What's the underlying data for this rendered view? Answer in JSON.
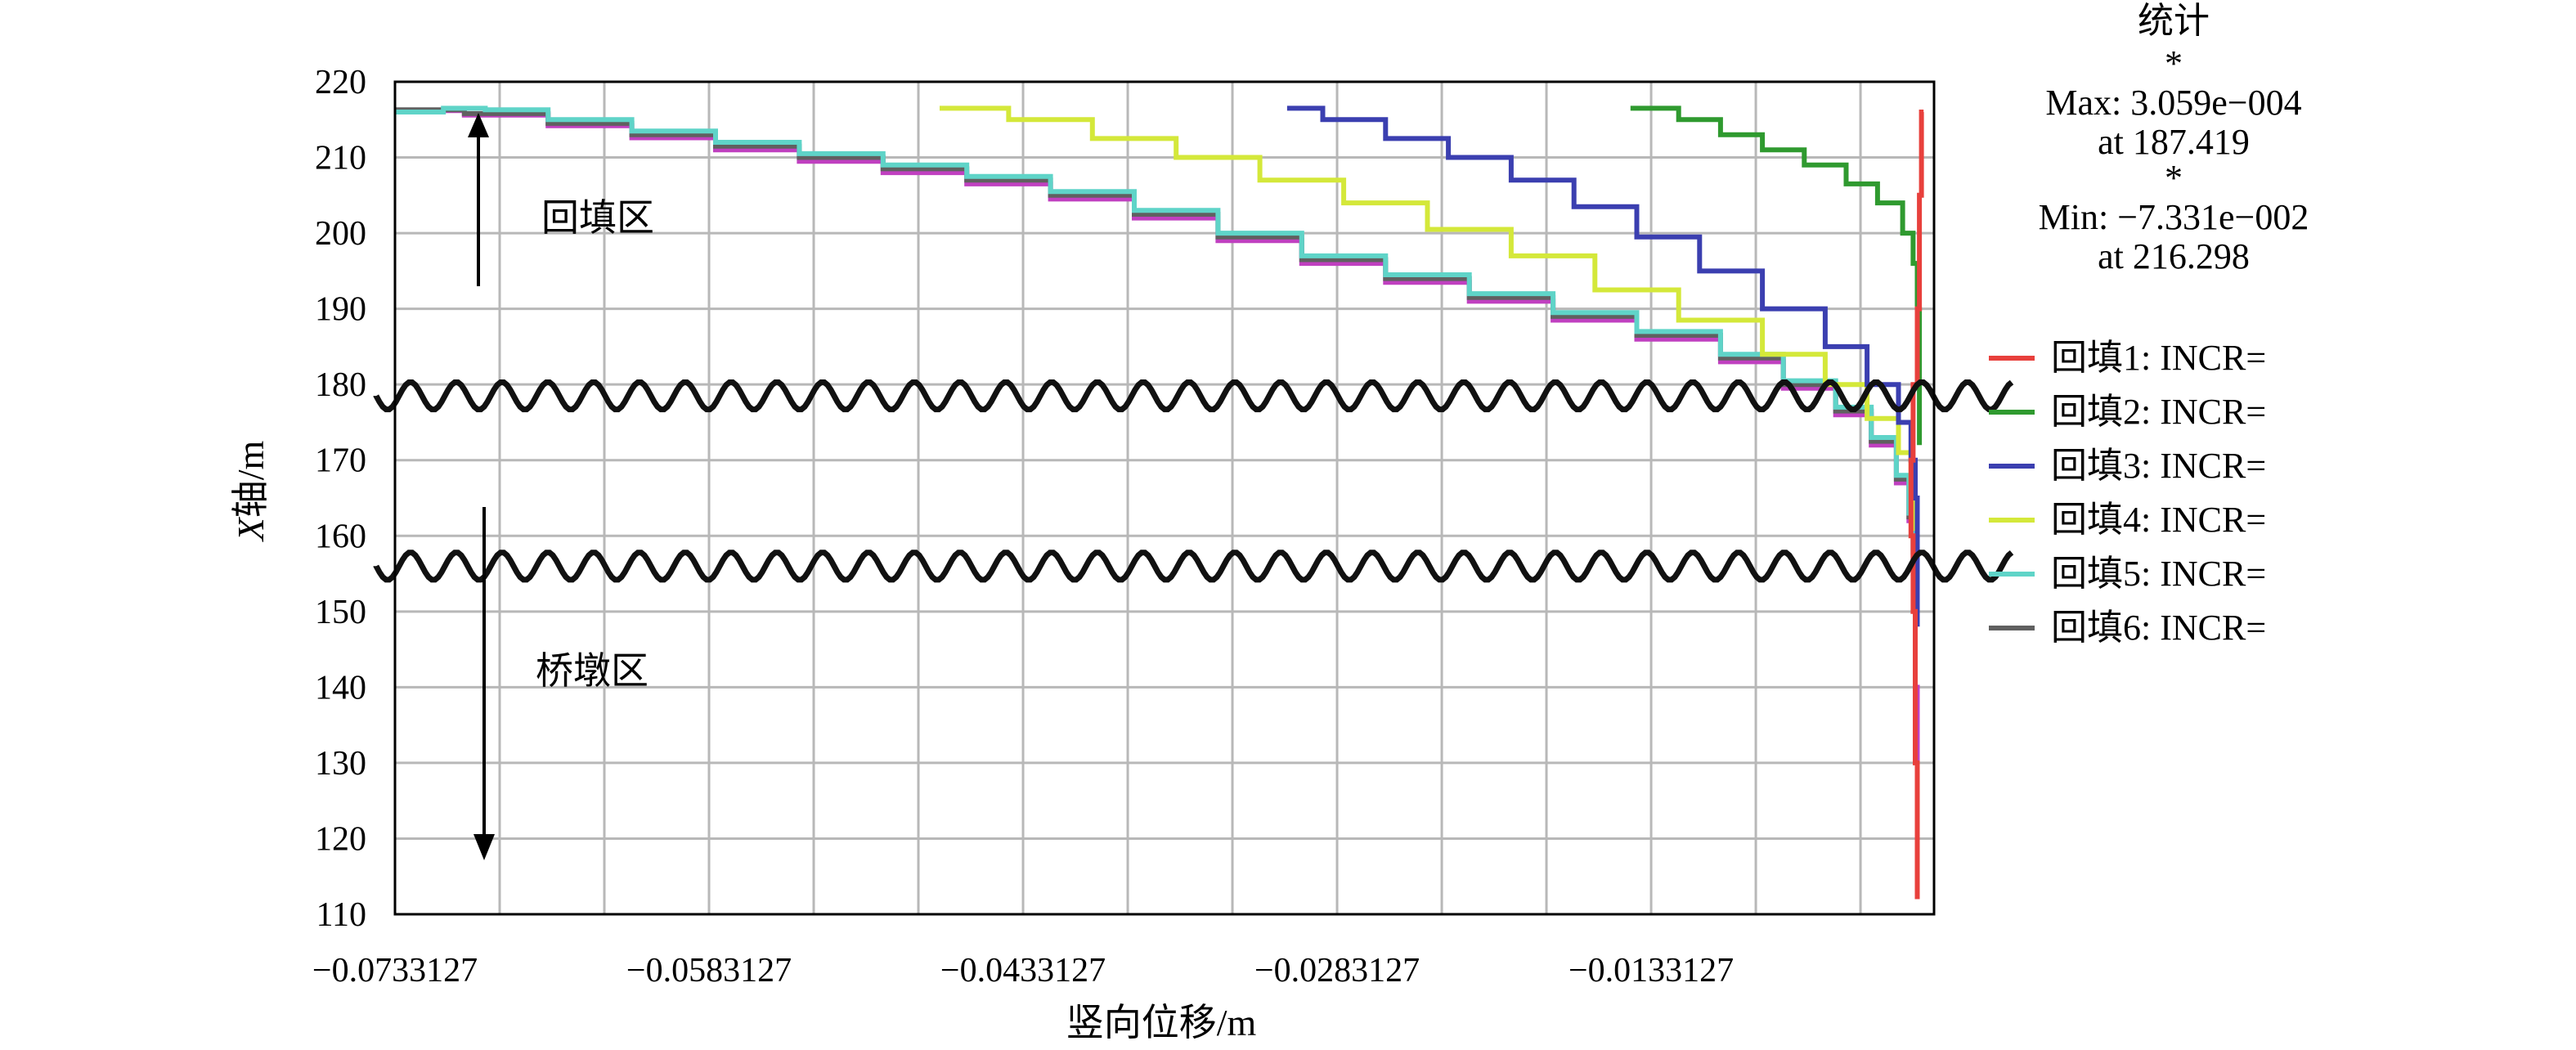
{
  "chart_data": {
    "type": "line",
    "xlabel": "竖向位移/m",
    "ylabel_italic": "X",
    "ylabel_rest": "轴/m",
    "xlim": [
      -0.0733127,
      0.0002
    ],
    "ylim": [
      110,
      220
    ],
    "x_ticks": [
      -0.0733127,
      -0.0583127,
      -0.0433127,
      -0.0283127,
      -0.0133127
    ],
    "x_tick_labels": [
      "−0.0733127",
      "−0.0583127",
      "−0.0433127",
      "−0.0283127",
      "−0.0133127"
    ],
    "y_ticks": [
      110,
      120,
      130,
      140,
      150,
      160,
      170,
      180,
      190,
      200,
      210,
      220
    ],
    "y_tick_labels": [
      "110",
      "120",
      "130",
      "140",
      "150",
      "160",
      "170",
      "180",
      "190",
      "200",
      "210",
      "220"
    ],
    "grid": true,
    "legend_position": "right",
    "stats": {
      "title": "统计",
      "star1": "*",
      "max_line": "Max: 3.059e−004",
      "max_at": "at 187.419",
      "star2": "*",
      "min_line": "Min: −7.331e−002",
      "min_at": "at 216.298"
    },
    "annotations": {
      "upper_region": "回填区",
      "lower_region": "桥墩区"
    },
    "break_marks_y": [
      178.5,
      156
    ],
    "series": [
      {
        "name": "回填1: INCR=",
        "color": "#e8403c",
        "x": [
          -0.0003,
          -0.0004,
          -0.0005,
          -0.0006,
          -0.0008,
          -0.0009,
          -0.0008,
          -0.0007,
          -0.0006
        ],
        "y": [
          216,
          205,
          190,
          180,
          170,
          160,
          150,
          130,
          112
        ]
      },
      {
        "name": "回填2: INCR=",
        "color": "#2f9a2f",
        "x": [
          -0.0143,
          -0.012,
          -0.01,
          -0.008,
          -0.006,
          -0.004,
          -0.0025,
          -0.0013,
          -0.0008,
          -0.0006,
          -0.0005,
          -0.0005
        ],
        "y": [
          216.5,
          215,
          213,
          211,
          209,
          206.5,
          204,
          200,
          196,
          190,
          180,
          172
        ]
      },
      {
        "name": "回填3: INCR=",
        "color": "#3b3fb0",
        "x": [
          -0.0307,
          -0.029,
          -0.026,
          -0.023,
          -0.02,
          -0.017,
          -0.014,
          -0.011,
          -0.008,
          -0.005,
          -0.003,
          -0.0015,
          -0.0009,
          -0.0007,
          -0.0006,
          -0.0006
        ],
        "y": [
          216.5,
          215,
          212.5,
          210,
          207,
          203.5,
          199.5,
          195,
          190,
          185,
          180,
          175,
          170,
          165,
          158,
          148
        ]
      },
      {
        "name": "回填4: INCR=",
        "color": "#d4e83a",
        "x": [
          -0.0473,
          -0.044,
          -0.04,
          -0.036,
          -0.032,
          -0.028,
          -0.024,
          -0.02,
          -0.016,
          -0.012,
          -0.008,
          -0.005,
          -0.003,
          -0.0015,
          -0.0009,
          -0.0007,
          -0.0006
        ],
        "y": [
          216.5,
          215,
          212.5,
          210,
          207,
          204,
          200.5,
          197,
          192.5,
          188.5,
          184,
          180,
          175.5,
          171,
          166,
          161,
          152
        ]
      },
      {
        "name": "回填5: INCR=",
        "color": "#5fd4c8",
        "x": [
          -0.0733,
          -0.071,
          -0.069,
          -0.066,
          -0.062,
          -0.058,
          -0.054,
          -0.05,
          -0.046,
          -0.042,
          -0.038,
          -0.034,
          -0.03,
          -0.026,
          -0.022,
          -0.018,
          -0.014,
          -0.01,
          -0.007,
          -0.0045,
          -0.0028,
          -0.0016,
          -0.001,
          -0.0008
        ],
        "y": [
          216,
          216.5,
          216.3,
          215,
          213.5,
          212,
          210.5,
          209,
          207.5,
          205.5,
          203,
          200,
          197,
          194.5,
          192,
          189.5,
          187,
          184,
          180.5,
          177,
          173,
          168,
          163,
          158
        ]
      },
      {
        "name": "回填6: INCR=",
        "color": "#606060",
        "x": [
          -0.0733,
          -0.07,
          -0.066,
          -0.062,
          -0.058,
          -0.054,
          -0.05,
          -0.046,
          -0.042,
          -0.038,
          -0.034,
          -0.03,
          -0.026,
          -0.022,
          -0.018,
          -0.014,
          -0.01,
          -0.007,
          -0.0045,
          -0.0028,
          -0.0016,
          -0.001,
          -0.0008
        ],
        "y": [
          216.3,
          215.8,
          214.5,
          213,
          211.5,
          210,
          208.5,
          207,
          205,
          202.5,
          199.5,
          196.5,
          194,
          191.5,
          189,
          186.5,
          183.5,
          180,
          176.5,
          172.5,
          167.5,
          162.5,
          157.5
        ]
      },
      {
        "name": "",
        "color": "#c040c0",
        "x": [
          -0.0733,
          -0.07,
          -0.066,
          -0.062,
          -0.058,
          -0.054,
          -0.05,
          -0.046,
          -0.042,
          -0.038,
          -0.034,
          -0.03,
          -0.026,
          -0.022,
          -0.018,
          -0.014,
          -0.01,
          -0.007,
          -0.0045,
          -0.0028,
          -0.0016,
          -0.001,
          -0.0008,
          -0.0007,
          -0.0006
        ],
        "y": [
          216.2,
          215.6,
          214.2,
          212.6,
          211,
          209.5,
          208,
          206.5,
          204.5,
          202,
          199,
          196,
          193.5,
          191,
          188.5,
          186,
          183,
          179.5,
          176,
          172,
          167,
          162,
          157,
          140,
          113
        ]
      }
    ]
  }
}
